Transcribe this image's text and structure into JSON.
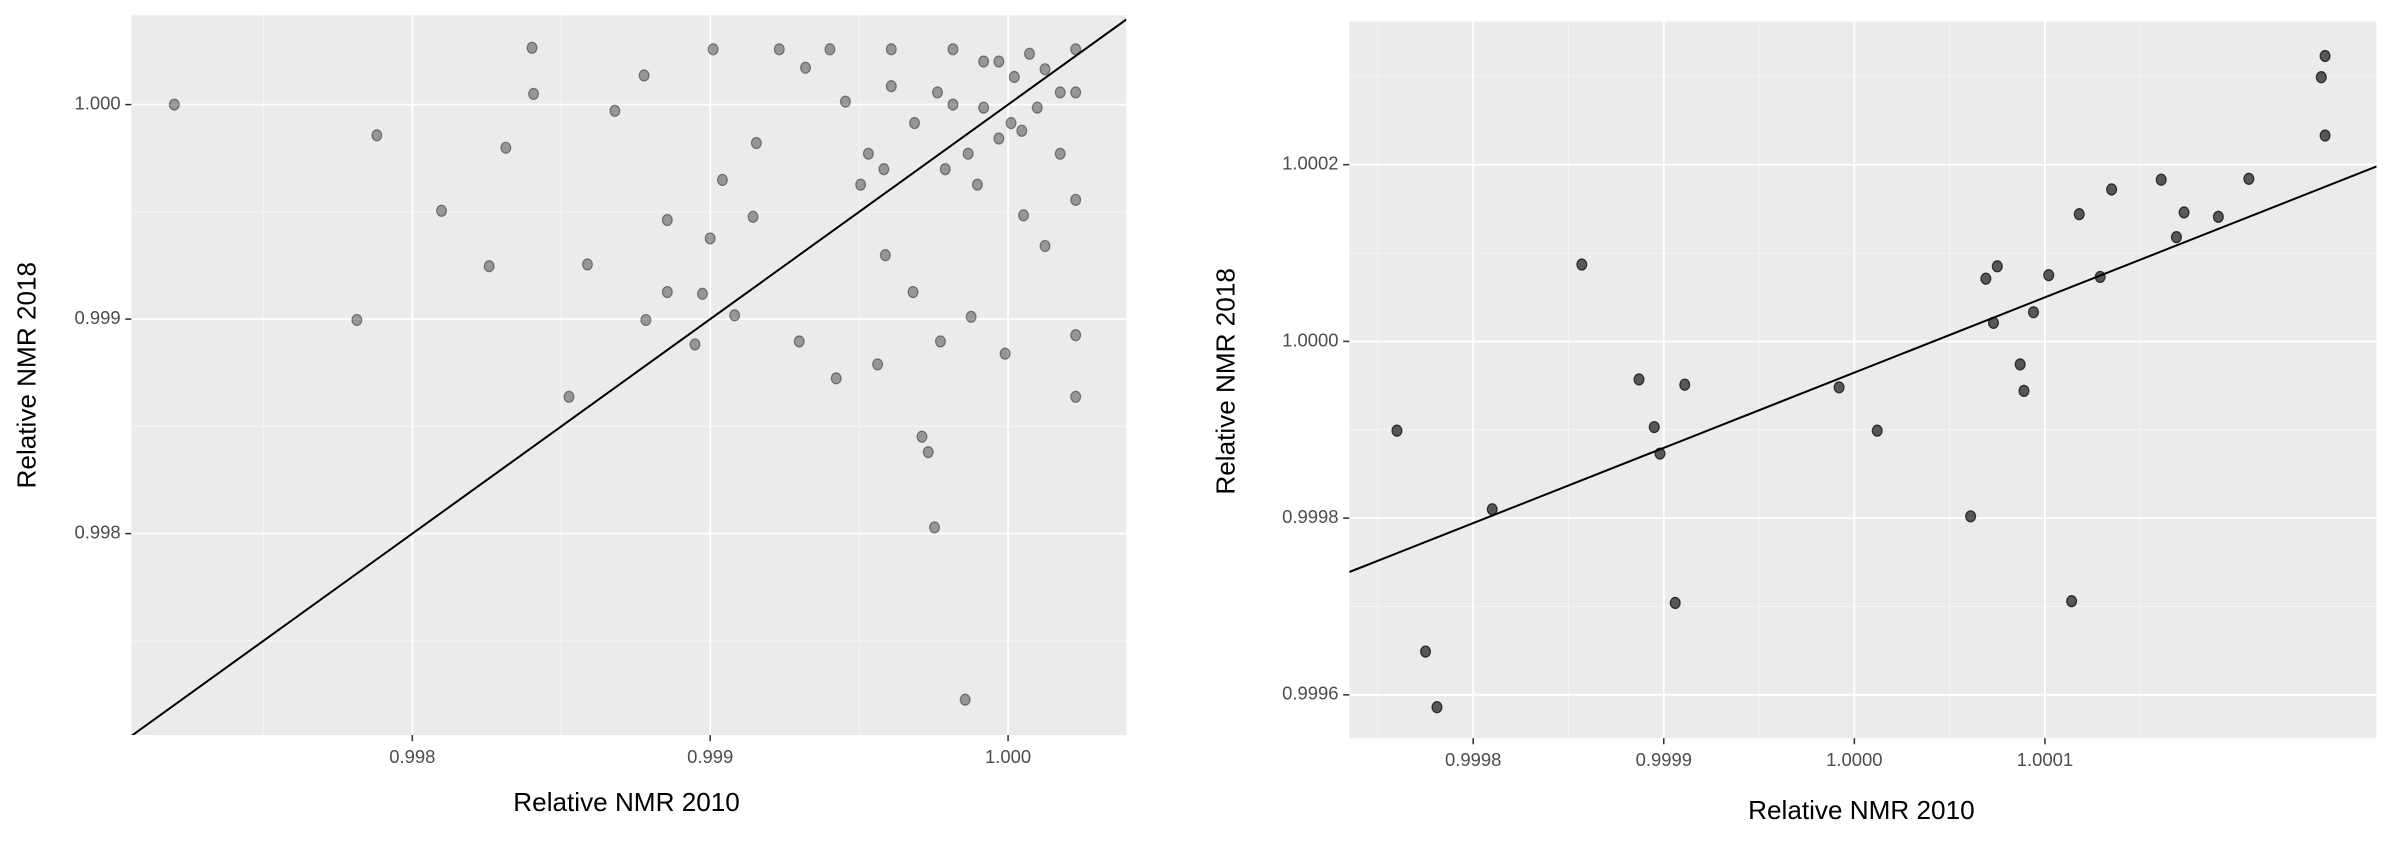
{
  "chart_data": [
    {
      "type": "scatter",
      "x_label": "Relative NMR 2010",
      "y_label": "Relative NMR 2018",
      "xlim": [
        0.997057,
        1.000397
      ],
      "ylim": [
        0.997061,
        1.000416
      ],
      "xticks": [
        0.998,
        0.999,
        {
          "value": 1,
          "label": "1.000"
        }
      ],
      "yticks": [
        0.998,
        0.999,
        {
          "value": 1,
          "label": "1.000"
        }
      ],
      "grid": true,
      "point_opacity": 0.4,
      "x": [
        0.997201,
        0.997881,
        0.997814,
        0.998098,
        0.998258,
        0.998314,
        0.998402,
        0.998407,
        0.998526,
        0.998588,
        0.99868,
        0.998778,
        0.998784,
        0.998856,
        0.998856,
        0.998949,
        0.998974,
        0.99901,
        0.999,
        0.999082,
        0.999144,
        0.999232,
        0.999299,
        0.999423,
        0.999454,
        0.999531,
        0.999562,
        0.999588,
        0.999608,
        0.999711,
        0.999732,
        0.999753,
        0.999773,
        0.999815,
        0.999856,
        0.999876,
        0.999897,
        0.99999,
        1.00001,
        1.000052,
        1.000124,
        1.000227,
        1.000227,
        1.000227,
        1.000227,
        0.999918,
        1.000021,
        1.000124,
        1.000227,
        0.999815,
        0.999608,
        0.999402,
        0.999763,
        0.999918,
        1.000098,
        0.999969,
        0.999866,
        0.999686,
        0.999789,
        1.000046,
        1.000175,
        0.999583,
        0.999155,
        0.999041,
        1.000175,
        0.999969,
        1.000072,
        0.999505,
        0.99932,
        0.999681
      ],
      "values": [
        1.0,
        0.999857,
        0.998996,
        0.999505,
        0.999247,
        0.999799,
        1.000265,
        1.00005,
        0.998638,
        0.999255,
        0.999971,
        1.000136,
        0.998996,
        0.999462,
        0.999126,
        0.998882,
        0.999118,
        1.000258,
        0.999376,
        0.999018,
        0.999477,
        1.000258,
        0.998896,
        0.998724,
        1.000014,
        0.999771,
        0.998789,
        0.999298,
        1.000086,
        0.998452,
        0.99838,
        0.998029,
        0.998896,
        1.0,
        0.997226,
        0.999011,
        0.999627,
        0.998839,
        0.999914,
        0.999484,
        0.999341,
        0.998925,
        0.998638,
        0.999556,
        1.000057,
        1.000201,
        1.000129,
        1.000165,
        1.000258,
        1.000258,
        1.000258,
        1.000258,
        1.000057,
        0.999986,
        0.999986,
        0.999842,
        0.999771,
        0.999914,
        0.999699,
        0.999878,
        1.000057,
        0.999699,
        0.999821,
        0.999649,
        0.999771,
        1.000201,
        1.000237,
        0.999627,
        1.000172,
        0.999126
      ],
      "reference_line": {
        "x": [
          0.997057,
          1.000397
        ],
        "y": [
          0.997057,
          1.000397
        ]
      }
    },
    {
      "type": "scatter",
      "x_label": "Relative NMR 2010",
      "y_label": "Relative NMR 2018",
      "xlim": [
        0.999735,
        1.000274
      ],
      "ylim": [
        0.999551,
        1.000362
      ],
      "xticks": [
        0.9998,
        0.9999,
        {
          "value": 1,
          "label": "1.0000"
        },
        1.0001
      ],
      "yticks": [
        0.9996,
        0.9998,
        {
          "value": 1,
          "label": "1.0000"
        },
        1.0002
      ],
      "grid": true,
      "point_opacity": 0.7,
      "x": [
        0.99976,
        0.999775,
        0.999781,
        0.99981,
        0.999857,
        0.999887,
        0.999895,
        0.999898,
        0.999906,
        0.999911,
        0.999992,
        1.000012,
        1.000061,
        1.000069,
        1.000073,
        1.000075,
        1.000087,
        1.000089,
        1.000094,
        1.000102,
        1.000114,
        1.000118,
        1.000129,
        1.000135,
        1.000161,
        1.000169,
        1.000173,
        1.000191,
        1.000207,
        1.000245,
        1.000247,
        1.000247
      ],
      "values": [
        0.999899,
        0.999649,
        0.999586,
        0.99981,
        1.000087,
        0.999957,
        0.999903,
        0.999873,
        0.999704,
        0.999951,
        0.999948,
        0.999899,
        0.999802,
        1.000071,
        1.000021,
        1.000085,
        0.999974,
        0.999944,
        1.000033,
        1.000075,
        0.999706,
        1.000144,
        1.000073,
        1.000172,
        1.000183,
        1.000118,
        1.000146,
        1.000141,
        1.000184,
        1.000299,
        1.000323,
        1.000233
      ],
      "reference_line": {
        "x": [
          0.999735,
          1.000274
        ],
        "y": [
          0.999739,
          1.000198
        ]
      }
    }
  ]
}
